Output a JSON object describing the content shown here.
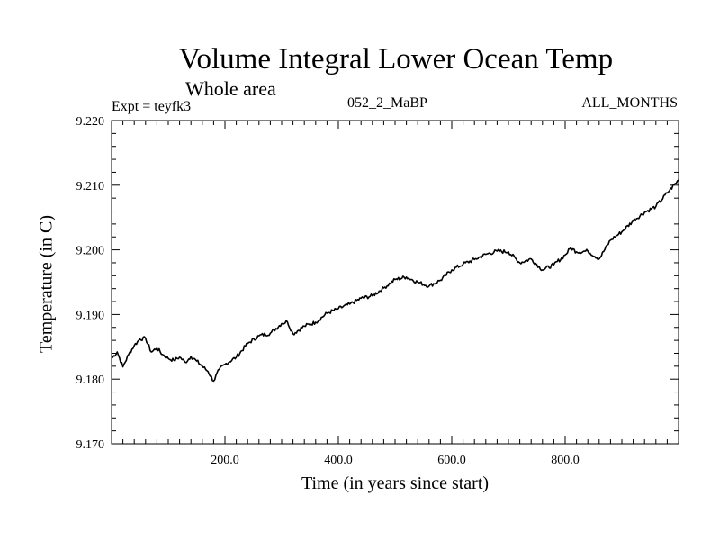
{
  "chart_data": {
    "type": "line",
    "title": "Volume Integral Lower Ocean Temp",
    "subtitle": "Whole area",
    "experiment": "Expt = teyfk3",
    "run_name": "052_2_MaBP",
    "months": "ALL_MONTHS",
    "xlabel": "Time (in years since start)",
    "ylabel": "Temperature (in C)",
    "xlim": [
      0,
      1000
    ],
    "ylim": [
      9.17,
      9.22
    ],
    "xticks": [
      200,
      400,
      600,
      800
    ],
    "xtick_labels": [
      "200.0",
      "400.0",
      "600.0",
      "800.0"
    ],
    "yticks": [
      9.17,
      9.18,
      9.19,
      9.2,
      9.21,
      9.22
    ],
    "ytick_labels": [
      "9.170",
      "9.180",
      "9.190",
      "9.200",
      "9.210",
      "9.220"
    ],
    "series": [
      {
        "name": "Temperature",
        "x": [
          0,
          10,
          20,
          30,
          40,
          50,
          60,
          70,
          80,
          90,
          100,
          110,
          120,
          130,
          140,
          150,
          160,
          170,
          180,
          190,
          200,
          220,
          240,
          260,
          280,
          300,
          310,
          320,
          340,
          360,
          380,
          400,
          420,
          440,
          460,
          480,
          500,
          520,
          540,
          560,
          580,
          600,
          620,
          640,
          660,
          680,
          700,
          720,
          740,
          760,
          780,
          800,
          810,
          820,
          840,
          860,
          880,
          900,
          920,
          940,
          960,
          980,
          1000
        ],
        "values": [
          9.1832,
          9.1842,
          9.1819,
          9.1838,
          9.1852,
          9.1862,
          9.1863,
          9.1842,
          9.1848,
          9.1838,
          9.1832,
          9.1829,
          9.1834,
          9.1826,
          9.1835,
          9.1828,
          9.182,
          9.1812,
          9.1797,
          9.1815,
          9.1823,
          9.1834,
          9.1855,
          9.1867,
          9.1871,
          9.1886,
          9.1889,
          9.187,
          9.1882,
          9.1888,
          9.1902,
          9.1909,
          9.1916,
          9.1925,
          9.1929,
          9.1941,
          9.1954,
          9.1958,
          9.195,
          9.1944,
          9.1953,
          9.1969,
          9.1978,
          9.1985,
          9.1993,
          9.1998,
          9.1997,
          9.198,
          9.1986,
          9.1969,
          9.1977,
          9.1992,
          9.2003,
          9.1997,
          9.1998,
          9.1986,
          9.2015,
          9.2028,
          9.2045,
          9.2058,
          9.2067,
          9.2088,
          9.2108
        ]
      }
    ]
  }
}
